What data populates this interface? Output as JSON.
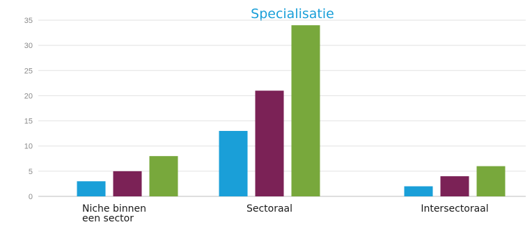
{
  "chart_data": {
    "type": "bar",
    "title": "Specialisatie",
    "categories": [
      [
        "Niche binnen",
        "een sector"
      ],
      [
        "Sectoraal"
      ],
      [
        "Intersectoraal"
      ]
    ],
    "series": [
      {
        "values": [
          3,
          13,
          2
        ],
        "color": "#1a9fd8"
      },
      {
        "values": [
          5,
          21,
          4
        ],
        "color": "#7b2256"
      },
      {
        "values": [
          8,
          34,
          6
        ],
        "color": "#78a83c"
      }
    ],
    "yticks": [
      0,
      5,
      10,
      15,
      20,
      25,
      30,
      35
    ],
    "ylim": [
      0,
      35
    ],
    "grid": true,
    "legend": "none"
  }
}
